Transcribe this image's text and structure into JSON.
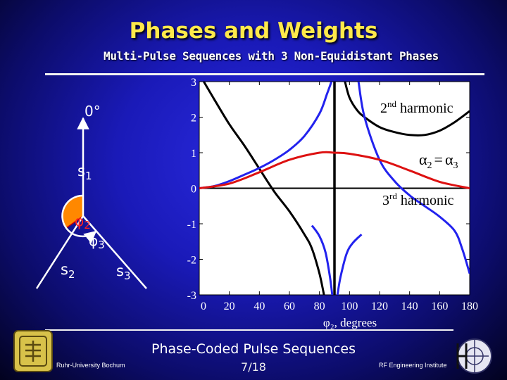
{
  "slide": {
    "title": "Phases and Weights",
    "subtitle": "Multi-Pulse Sequences with 3 Non-Equidistant Phases",
    "footer_title": "Phase-Coded Pulse Sequences",
    "page": "7/18",
    "university": "Ruhr-University Bochum",
    "institute": "RF Engineering Institute"
  },
  "diagram": {
    "zero_label": "0°",
    "s1": "s",
    "s1_sub": "1",
    "s2": "s",
    "s2_sub": "2",
    "s3": "s",
    "s3_sub": "3",
    "phi2": "φ",
    "phi2_sub": "2",
    "phi3": "φ",
    "phi3_sub": "3",
    "colors": {
      "vector": "#ffffff",
      "arc_fill": "#ff8800",
      "arc_outline": "#cc0000"
    }
  },
  "chart_data": {
    "type": "line",
    "xlabel": "φ₂, degrees",
    "xlim": [
      0,
      180
    ],
    "ylim": [
      -3,
      3
    ],
    "xticks": [
      0,
      20,
      40,
      60,
      80,
      100,
      120,
      140,
      160,
      180
    ],
    "yticks": [
      3,
      2,
      1,
      0,
      -1,
      -2,
      -3
    ],
    "grid": false,
    "annotations": {
      "second": "2",
      "second_sup": "nd",
      "second_rest": " harmonic",
      "third": "3",
      "third_sup": "rd",
      "third_rest": " harmonic",
      "alpha": "α",
      "alpha2_sub": "2",
      "eq": "=",
      "alpha3_sub": "3"
    },
    "vertical_line_x": 90,
    "series": [
      {
        "color": "#000000",
        "x": [
          3,
          10,
          20,
          30,
          40,
          50,
          60,
          70,
          75,
          80,
          83
        ],
        "y": [
          3.0,
          2.5,
          1.8,
          1.2,
          0.55,
          -0.1,
          -0.65,
          -1.3,
          -1.7,
          -2.4,
          -3.0
        ]
      },
      {
        "color": "#000000",
        "x": [
          97,
          100,
          105,
          110,
          120,
          130,
          140,
          150,
          160,
          170,
          180
        ],
        "y": [
          3.0,
          2.55,
          2.2,
          2.0,
          1.72,
          1.58,
          1.5,
          1.5,
          1.62,
          1.86,
          2.17
        ]
      },
      {
        "color": "#2222ee",
        "x": [
          0,
          10,
          20,
          30,
          40,
          50,
          60,
          70,
          80,
          85,
          88
        ],
        "y": [
          0.0,
          0.06,
          0.2,
          0.38,
          0.57,
          0.8,
          1.08,
          1.47,
          2.1,
          2.65,
          3.0
        ]
      },
      {
        "color": "#2222ee",
        "x": [
          106,
          110,
          120,
          130,
          140,
          150,
          160,
          170,
          175,
          180
        ],
        "y": [
          3.0,
          2.0,
          0.8,
          0.2,
          -0.2,
          -0.5,
          -0.8,
          -1.2,
          -1.7,
          -2.4
        ]
      },
      {
        "color": "#2222ee",
        "x": [
          75,
          80,
          84,
          87,
          88.5
        ],
        "y": [
          -1.05,
          -1.35,
          -1.8,
          -2.5,
          -3.0
        ]
      },
      {
        "color": "#2222ee",
        "x": [
          92,
          94,
          98,
          102,
          108
        ],
        "y": [
          -3.0,
          -2.5,
          -1.85,
          -1.55,
          -1.3
        ]
      },
      {
        "color": "#dd1111",
        "x": [
          0,
          20,
          40,
          60,
          80,
          90,
          100,
          120,
          140,
          160,
          180
        ],
        "y": [
          0.0,
          0.13,
          0.45,
          0.8,
          1.0,
          1.0,
          0.97,
          0.8,
          0.5,
          0.18,
          0.0
        ]
      }
    ]
  }
}
